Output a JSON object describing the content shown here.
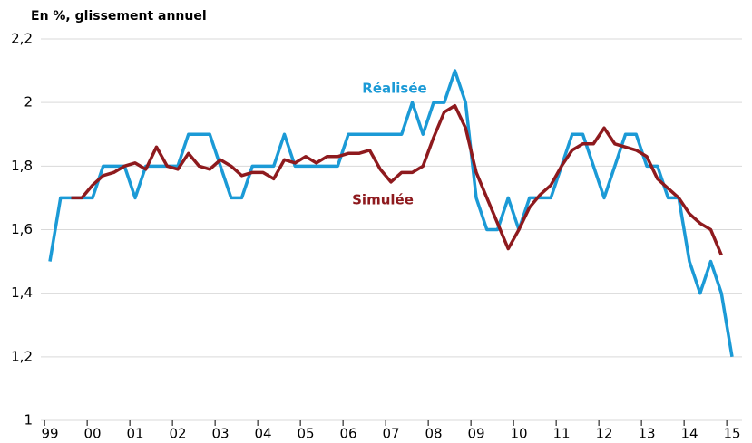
{
  "chart_data": {
    "type": "line",
    "title": "En %, glissement annuel",
    "categories": [
      "99",
      null,
      null,
      null,
      "00",
      null,
      null,
      null,
      "01",
      null,
      null,
      null,
      "02",
      null,
      null,
      null,
      "03",
      null,
      null,
      null,
      "04",
      null,
      null,
      null,
      "05",
      null,
      null,
      null,
      "06",
      null,
      null,
      null,
      "07",
      null,
      null,
      null,
      "08",
      null,
      null,
      null,
      "09",
      null,
      null,
      null,
      "10",
      null,
      null,
      null,
      "11",
      null,
      null,
      null,
      "12",
      null,
      null,
      null,
      "13",
      null,
      null,
      null,
      "14",
      null,
      null,
      null,
      "15"
    ],
    "series": [
      {
        "name": "Réalisée",
        "color": "#1b9ad6",
        "values": [
          1.5,
          1.7,
          1.7,
          1.7,
          1.7,
          1.8,
          1.8,
          1.8,
          1.7,
          1.8,
          1.8,
          1.8,
          1.8,
          1.9,
          1.9,
          1.9,
          1.8,
          1.7,
          1.7,
          1.8,
          1.8,
          1.8,
          1.9,
          1.8,
          1.8,
          1.8,
          1.8,
          1.8,
          1.9,
          1.9,
          1.9,
          1.9,
          1.9,
          1.9,
          2.0,
          1.9,
          2.0,
          2.0,
          2.1,
          2.0,
          1.7,
          1.6,
          1.6,
          1.7,
          1.6,
          1.7,
          1.7,
          1.7,
          1.8,
          1.9,
          1.9,
          1.8,
          1.7,
          1.8,
          1.9,
          1.9,
          1.8,
          1.8,
          1.7,
          1.7,
          1.5,
          1.4,
          1.5,
          1.4,
          1.2
        ]
      },
      {
        "name": "Simulée",
        "color": "#8e1a1e",
        "values": [
          null,
          null,
          1.7,
          1.7,
          1.74,
          1.77,
          1.78,
          1.8,
          1.81,
          1.79,
          1.86,
          1.8,
          1.79,
          1.84,
          1.8,
          1.79,
          1.82,
          1.8,
          1.77,
          1.78,
          1.78,
          1.76,
          1.82,
          1.81,
          1.83,
          1.81,
          1.83,
          1.83,
          1.84,
          1.84,
          1.85,
          1.79,
          1.75,
          1.78,
          1.78,
          1.8,
          1.89,
          1.97,
          1.99,
          1.92,
          1.78,
          1.7,
          1.62,
          1.54,
          1.6,
          1.67,
          1.71,
          1.74,
          1.8,
          1.85,
          1.87,
          1.87,
          1.92,
          1.87,
          1.86,
          1.85,
          1.83,
          1.76,
          1.73,
          1.7,
          1.65,
          1.62,
          1.6,
          1.52,
          null
        ]
      }
    ],
    "ylim": [
      1,
      2.2
    ],
    "yticks": [
      1,
      {
        "value": 1.2,
        "label": "1,2"
      },
      {
        "value": 1.4,
        "label": "1,4"
      },
      {
        "value": 1.6,
        "label": "1,6"
      },
      {
        "value": 1.8,
        "label": "1,8"
      },
      2,
      {
        "value": 2.2,
        "label": "2,2"
      }
    ],
    "grid": true
  }
}
